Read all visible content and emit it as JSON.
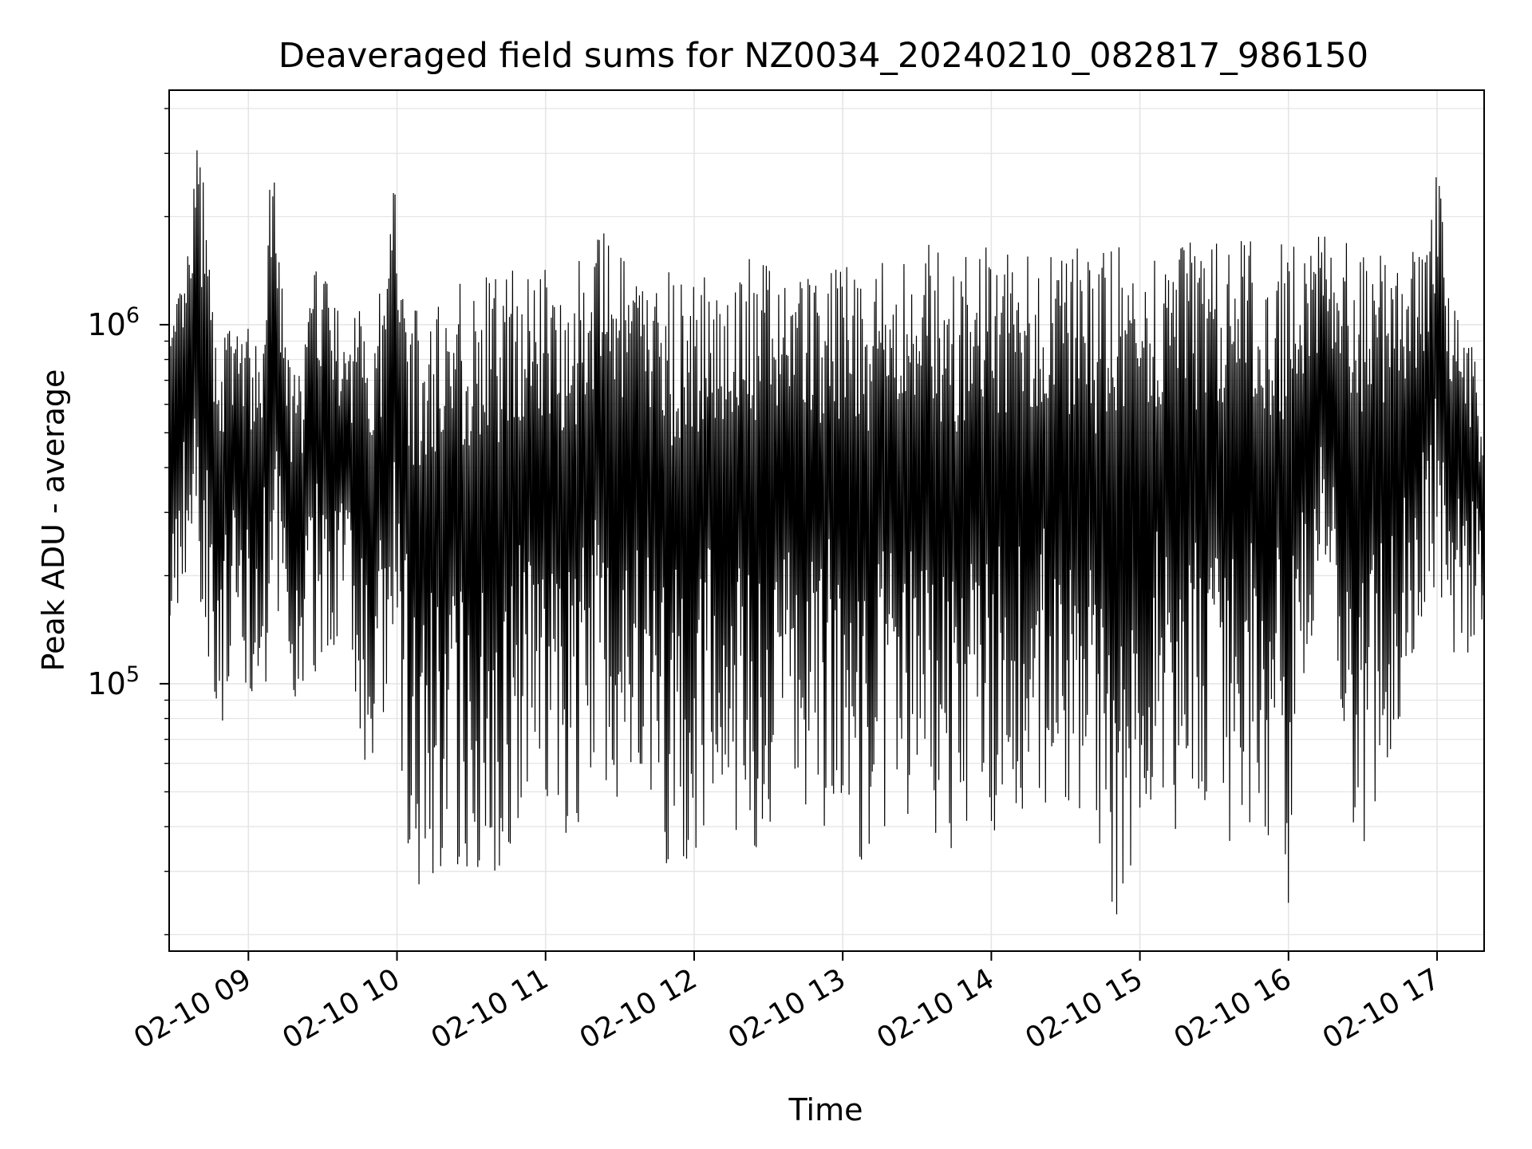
{
  "chart_data": {
    "type": "line",
    "title": "Deaveraged field sums for NZ0034_20240210_082817_986150",
    "xlabel": "Time",
    "ylabel": "Peak ADU - average",
    "y_scale": "log",
    "ylim": [
      18000,
      4500000
    ],
    "xlim": [
      "2024-02-10 08:28",
      "2024-02-10 17:19"
    ],
    "x_ticks": [
      {
        "value": "2024-02-10 09:00",
        "label": "02-10 09"
      },
      {
        "value": "2024-02-10 10:00",
        "label": "02-10 10"
      },
      {
        "value": "2024-02-10 11:00",
        "label": "02-10 11"
      },
      {
        "value": "2024-02-10 12:00",
        "label": "02-10 12"
      },
      {
        "value": "2024-02-10 13:00",
        "label": "02-10 13"
      },
      {
        "value": "2024-02-10 14:00",
        "label": "02-10 14"
      },
      {
        "value": "2024-02-10 15:00",
        "label": "02-10 15"
      },
      {
        "value": "2024-02-10 16:00",
        "label": "02-10 16"
      },
      {
        "value": "2024-02-10 17:00",
        "label": "02-10 17"
      }
    ],
    "y_ticks": [
      {
        "value": 100000,
        "base": "10",
        "exp": "5"
      },
      {
        "value": 1000000,
        "base": "10",
        "exp": "6"
      }
    ],
    "grid": true,
    "line_color": "#000000",
    "grid_color": "#e5e5e5",
    "series": [
      {
        "x": [
          "2024-02-10 08:28",
          "2024-02-10 08:35",
          "2024-02-10 08:40",
          "2024-02-10 08:45",
          "2024-02-10 08:50",
          "2024-02-10 08:55",
          "2024-02-10 09:00",
          "2024-02-10 09:05",
          "2024-02-10 09:10",
          "2024-02-10 09:15",
          "2024-02-10 09:20",
          "2024-02-10 09:25",
          "2024-02-10 09:30",
          "2024-02-10 09:35",
          "2024-02-10 09:40",
          "2024-02-10 09:45",
          "2024-02-10 09:50",
          "2024-02-10 09:55",
          "2024-02-10 10:00",
          "2024-02-10 10:05",
          "2024-02-10 10:10",
          "2024-02-10 10:15",
          "2024-02-10 10:20",
          "2024-02-10 10:25",
          "2024-02-10 10:30",
          "2024-02-10 10:35",
          "2024-02-10 10:40",
          "2024-02-10 10:45",
          "2024-02-10 10:50",
          "2024-02-10 10:55",
          "2024-02-10 11:00",
          "2024-02-10 11:05",
          "2024-02-10 11:10",
          "2024-02-10 11:15",
          "2024-02-10 11:20",
          "2024-02-10 11:25",
          "2024-02-10 11:30",
          "2024-02-10 11:35",
          "2024-02-10 11:40",
          "2024-02-10 11:45",
          "2024-02-10 11:50",
          "2024-02-10 11:55",
          "2024-02-10 12:00",
          "2024-02-10 12:05",
          "2024-02-10 12:10",
          "2024-02-10 12:15",
          "2024-02-10 12:20",
          "2024-02-10 12:25",
          "2024-02-10 12:30",
          "2024-02-10 12:35",
          "2024-02-10 12:40",
          "2024-02-10 12:45",
          "2024-02-10 12:50",
          "2024-02-10 12:55",
          "2024-02-10 13:00",
          "2024-02-10 13:05",
          "2024-02-10 13:10",
          "2024-02-10 13:15",
          "2024-02-10 13:20",
          "2024-02-10 13:25",
          "2024-02-10 13:30",
          "2024-02-10 13:35",
          "2024-02-10 13:40",
          "2024-02-10 13:45",
          "2024-02-10 13:50",
          "2024-02-10 13:55",
          "2024-02-10 14:00",
          "2024-02-10 14:05",
          "2024-02-10 14:10",
          "2024-02-10 14:15",
          "2024-02-10 14:20",
          "2024-02-10 14:25",
          "2024-02-10 14:30",
          "2024-02-10 14:35",
          "2024-02-10 14:40",
          "2024-02-10 14:45",
          "2024-02-10 14:50",
          "2024-02-10 14:55",
          "2024-02-10 15:00",
          "2024-02-10 15:05",
          "2024-02-10 15:10",
          "2024-02-10 15:15",
          "2024-02-10 15:20",
          "2024-02-10 15:25",
          "2024-02-10 15:30",
          "2024-02-10 15:35",
          "2024-02-10 15:40",
          "2024-02-10 15:45",
          "2024-02-10 15:50",
          "2024-02-10 15:55",
          "2024-02-10 16:00",
          "2024-02-10 16:05",
          "2024-02-10 16:10",
          "2024-02-10 16:15",
          "2024-02-10 16:20",
          "2024-02-10 16:25",
          "2024-02-10 16:30",
          "2024-02-10 16:35",
          "2024-02-10 16:40",
          "2024-02-10 16:45",
          "2024-02-10 16:50",
          "2024-02-10 16:55",
          "2024-02-10 17:00",
          "2024-02-10 17:05",
          "2024-02-10 17:10",
          "2024-02-10 17:15",
          "2024-02-10 17:19"
        ],
        "y_high": [
          1000000,
          1500000,
          3700000,
          1200000,
          1000000,
          1100000,
          1000000,
          800000,
          3800000,
          900000,
          700000,
          1300000,
          1700000,
          1200000,
          800000,
          1500000,
          1200000,
          1300000,
          3600000,
          1300000,
          1000000,
          1200000,
          1400000,
          1300000,
          1300000,
          1400000,
          1400000,
          1500000,
          1500000,
          1400000,
          1500000,
          1500000,
          1500000,
          1600000,
          1700000,
          1900000,
          1600000,
          1400000,
          1400000,
          1400000,
          1400000,
          1400000,
          1300000,
          1400000,
          1400000,
          1500000,
          1600000,
          1500000,
          1500000,
          1500000,
          1600000,
          1500000,
          1500000,
          1400000,
          1500000,
          1500000,
          1600000,
          1600000,
          1500000,
          1600000,
          1600000,
          1700000,
          1600000,
          1500000,
          1600000,
          1600000,
          1800000,
          1600000,
          1500000,
          1600000,
          1600000,
          1700000,
          1600000,
          1700000,
          1700000,
          1600000,
          1600000,
          1800000,
          1600000,
          1700000,
          1700000,
          1600000,
          1700000,
          1600000,
          1700000,
          1600000,
          1800000,
          1700000,
          1700000,
          1600000,
          1900000,
          1500000,
          1700000,
          2000000,
          1700000,
          1700000,
          1700000,
          1600000,
          1500000,
          1500000,
          1600000,
          1500000,
          2800000,
          1400000,
          1000000,
          900000,
          450000
        ],
        "y_low": [
          110000,
          200000,
          150000,
          110000,
          65000,
          100000,
          90000,
          110000,
          90000,
          100000,
          70000,
          90000,
          110000,
          130000,
          170000,
          45000,
          40000,
          60000,
          70000,
          30000,
          27000,
          30000,
          32000,
          31000,
          31000,
          30000,
          30000,
          34000,
          45000,
          48000,
          40000,
          38000,
          35000,
          45000,
          60000,
          50000,
          48000,
          55000,
          60000,
          31000,
          30000,
          34000,
          28000,
          45000,
          50000,
          42000,
          30000,
          35000,
          40000,
          50000,
          45000,
          40000,
          32000,
          50000,
          45000,
          35000,
          30000,
          40000,
          38000,
          42000,
          45000,
          40000,
          35000,
          28000,
          40000,
          45000,
          35000,
          40000,
          45000,
          38000,
          50000,
          40000,
          35000,
          45000,
          27000,
          26000,
          22000,
          28000,
          40000,
          45000,
          40000,
          35000,
          40000,
          45000,
          40000,
          36000,
          38000,
          40000,
          30000,
          45000,
          20000,
          100000,
          120000,
          160000,
          60000,
          45000,
          31000,
          45000,
          60000,
          80000,
          100000,
          150000,
          200000,
          130000,
          110000,
          130000,
          150000
        ]
      }
    ]
  }
}
